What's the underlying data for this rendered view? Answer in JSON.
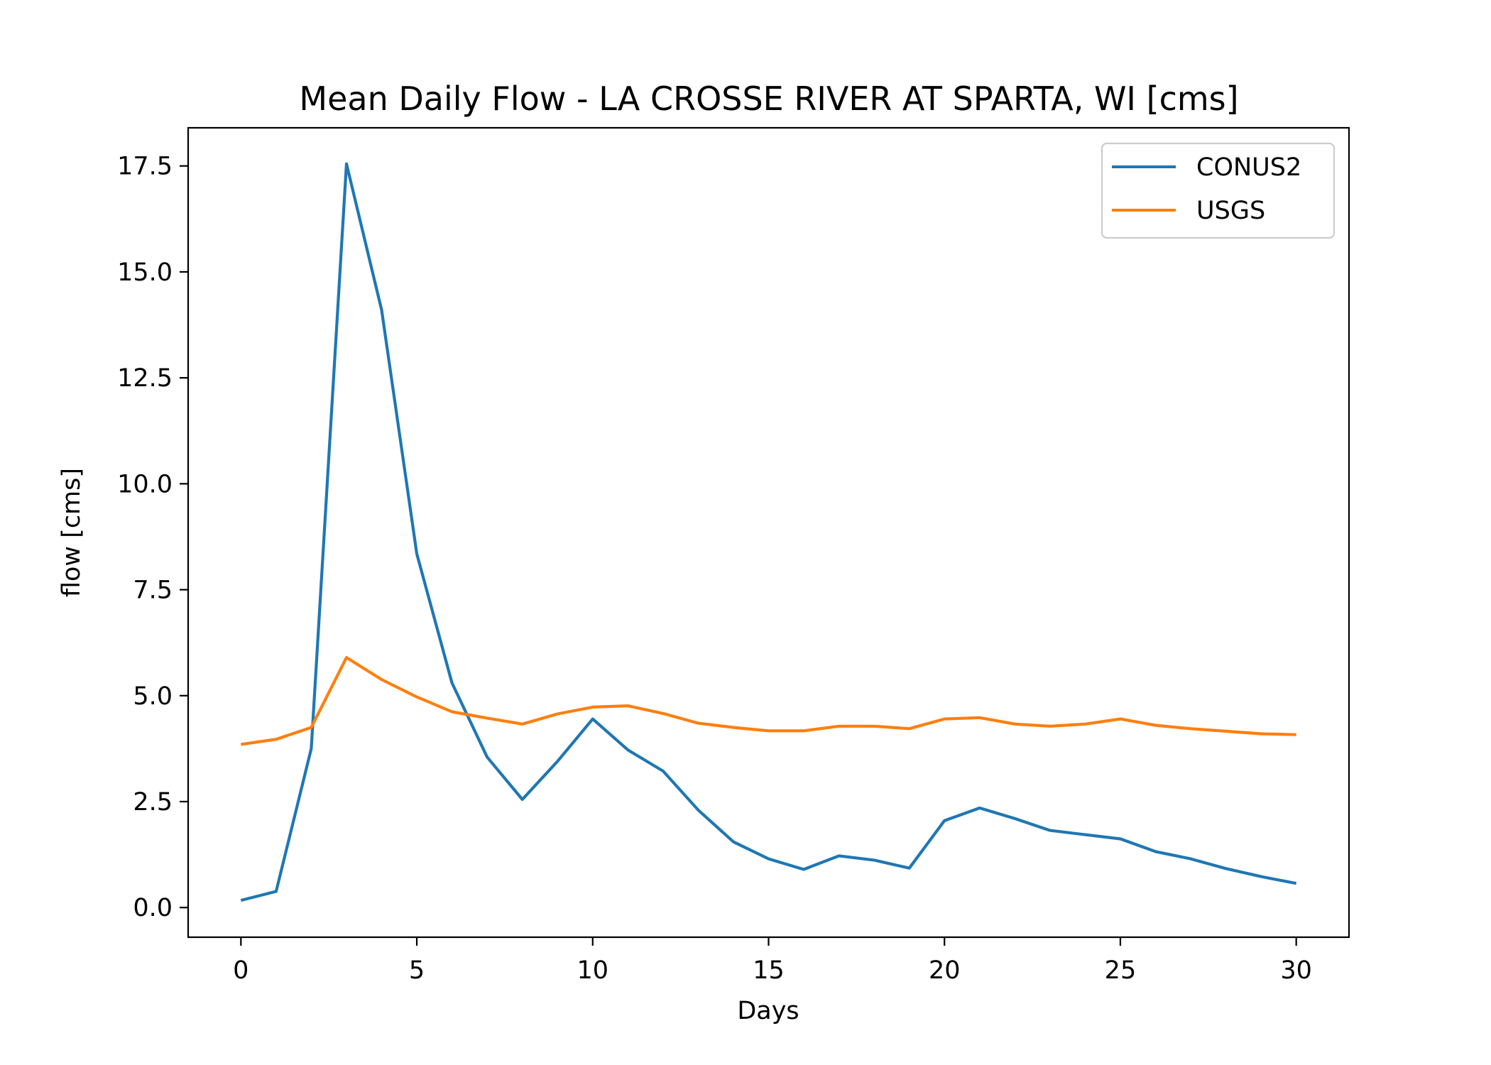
{
  "chart_data": {
    "type": "line",
    "title": "Mean Daily Flow - LA CROSSE RIVER AT SPARTA, WI [cms]",
    "xlabel": "Days",
    "ylabel": "flow [cms]",
    "xlim": [
      -1.5,
      31.5
    ],
    "ylim": [
      -0.7,
      18.4
    ],
    "xticks": [
      0,
      5,
      10,
      15,
      20,
      25,
      30
    ],
    "xtick_labels": [
      "0",
      "5",
      "10",
      "15",
      "20",
      "25",
      "30"
    ],
    "yticks": [
      0.0,
      2.5,
      5.0,
      7.5,
      10.0,
      12.5,
      15.0,
      17.5
    ],
    "ytick_labels": [
      "0.0",
      "2.5",
      "5.0",
      "7.5",
      "10.0",
      "12.5",
      "15.0",
      "17.5"
    ],
    "grid": false,
    "legend_position": "top-right",
    "x": [
      0,
      1,
      2,
      3,
      4,
      5,
      6,
      7,
      8,
      9,
      10,
      11,
      12,
      13,
      14,
      15,
      16,
      17,
      18,
      19,
      20,
      21,
      22,
      23,
      24,
      25,
      26,
      27,
      28,
      29,
      30
    ],
    "series": [
      {
        "name": "CONUS2",
        "color": "#1f77b4",
        "values": [
          0.17,
          0.38,
          3.75,
          17.55,
          14.1,
          8.35,
          5.3,
          3.55,
          2.55,
          3.45,
          4.45,
          3.72,
          3.22,
          2.3,
          1.55,
          1.15,
          0.9,
          1.22,
          1.12,
          0.93,
          2.05,
          2.35,
          2.1,
          1.82,
          1.72,
          1.62,
          1.32,
          1.15,
          0.92,
          0.73,
          0.57
        ]
      },
      {
        "name": "USGS",
        "color": "#ff7f0e",
        "values": [
          3.85,
          3.97,
          4.25,
          5.9,
          5.38,
          4.97,
          4.62,
          4.47,
          4.33,
          4.57,
          4.73,
          4.76,
          4.58,
          4.35,
          4.25,
          4.17,
          4.17,
          4.28,
          4.28,
          4.22,
          4.45,
          4.48,
          4.33,
          4.28,
          4.33,
          4.45,
          4.3,
          4.22,
          4.16,
          4.1,
          4.08
        ]
      }
    ]
  }
}
